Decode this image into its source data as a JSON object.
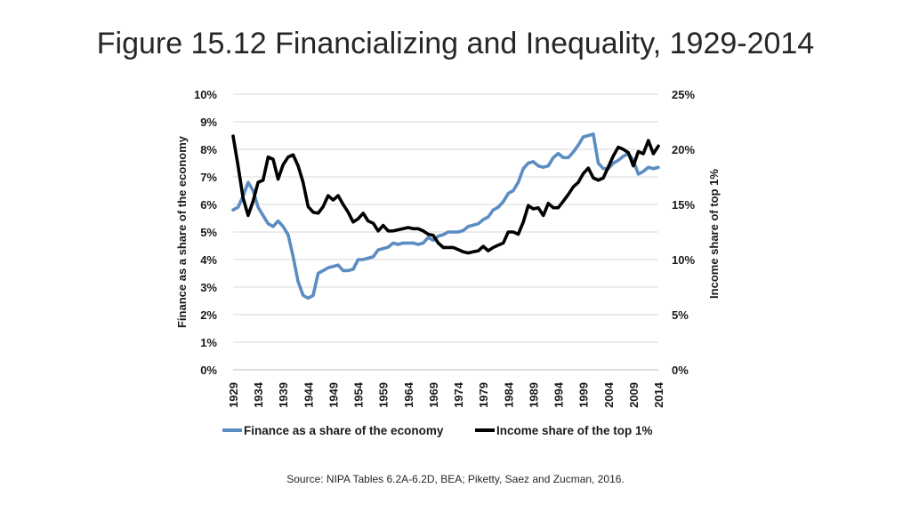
{
  "slide": {
    "title": "Figure 15.12 Financializing and Inequality, 1929-2014",
    "source": "Source: NIPA Tables 6.2A-6.2D, BEA; Piketty, Saez and Zucman, 2016."
  },
  "chart_data": {
    "type": "line",
    "title": "Figure 15.12 Financializing and Inequality, 1929-2014",
    "xlabel": "",
    "ylabel_left": "Finance as a share of the economy",
    "ylabel_right": "Income share of top 1%",
    "xlim": [
      1929,
      2014
    ],
    "ylim_left": [
      0,
      10
    ],
    "ylim_right": [
      0,
      25
    ],
    "grid": true,
    "legend_position": "bottom",
    "x_tick_labels": [
      "1929",
      "1934",
      "1939",
      "1944",
      "1949",
      "1954",
      "1959",
      "1964",
      "1969",
      "1974",
      "1979",
      "1984",
      "1989",
      "1994",
      "1999",
      "2004",
      "2009",
      "2014"
    ],
    "y_left_tick_labels": [
      "0%",
      "1%",
      "2%",
      "3%",
      "4%",
      "5%",
      "6%",
      "7%",
      "8%",
      "9%",
      "10%"
    ],
    "y_right_tick_labels": [
      "0%",
      "5%",
      "10%",
      "15%",
      "20%",
      "25%"
    ],
    "series": [
      {
        "name": "Finance as a share of the economy",
        "axis": "left",
        "color": "#5b8cc2",
        "x": [
          1929,
          1930,
          1931,
          1932,
          1933,
          1934,
          1935,
          1936,
          1937,
          1938,
          1939,
          1940,
          1941,
          1942,
          1943,
          1944,
          1945,
          1946,
          1947,
          1948,
          1949,
          1950,
          1951,
          1952,
          1953,
          1954,
          1955,
          1956,
          1957,
          1958,
          1959,
          1960,
          1961,
          1962,
          1963,
          1964,
          1965,
          1966,
          1967,
          1968,
          1969,
          1970,
          1971,
          1972,
          1973,
          1974,
          1975,
          1976,
          1977,
          1978,
          1979,
          1980,
          1981,
          1982,
          1983,
          1984,
          1985,
          1986,
          1987,
          1988,
          1989,
          1990,
          1991,
          1992,
          1993,
          1994,
          1995,
          1996,
          1997,
          1998,
          1999,
          2000,
          2001,
          2002,
          2003,
          2004,
          2005,
          2006,
          2007,
          2008,
          2009,
          2010,
          2011,
          2012,
          2013,
          2014
        ],
        "values": [
          5.8,
          5.9,
          6.3,
          6.8,
          6.5,
          5.9,
          5.6,
          5.3,
          5.2,
          5.4,
          5.2,
          4.9,
          4.1,
          3.2,
          2.7,
          2.6,
          2.7,
          3.5,
          3.6,
          3.7,
          3.75,
          3.8,
          3.6,
          3.6,
          3.65,
          4.0,
          4.0,
          4.05,
          4.1,
          4.35,
          4.4,
          4.45,
          4.6,
          4.55,
          4.6,
          4.6,
          4.6,
          4.55,
          4.6,
          4.8,
          4.7,
          4.85,
          4.9,
          5.0,
          5.0,
          5.0,
          5.05,
          5.2,
          5.25,
          5.3,
          5.45,
          5.55,
          5.8,
          5.9,
          6.1,
          6.4,
          6.5,
          6.8,
          7.3,
          7.5,
          7.55,
          7.4,
          7.35,
          7.4,
          7.7,
          7.85,
          7.7,
          7.7,
          7.9,
          8.15,
          8.45,
          8.5,
          8.55,
          7.5,
          7.3,
          7.3,
          7.5,
          7.6,
          7.75,
          7.85,
          7.6,
          7.1,
          7.2,
          7.35,
          7.3,
          7.35
        ]
      },
      {
        "name": "Income share of the top 1%",
        "axis": "right",
        "color": "#000000",
        "x": [
          1929,
          1930,
          1931,
          1932,
          1933,
          1934,
          1935,
          1936,
          1937,
          1938,
          1939,
          1940,
          1941,
          1942,
          1943,
          1944,
          1945,
          1946,
          1947,
          1948,
          1949,
          1950,
          1951,
          1952,
          1953,
          1954,
          1955,
          1956,
          1957,
          1958,
          1959,
          1960,
          1961,
          1962,
          1963,
          1964,
          1965,
          1966,
          1967,
          1968,
          1969,
          1970,
          1971,
          1972,
          1973,
          1974,
          1975,
          1976,
          1977,
          1978,
          1979,
          1980,
          1981,
          1982,
          1983,
          1984,
          1985,
          1986,
          1987,
          1988,
          1989,
          1990,
          1991,
          1992,
          1993,
          1994,
          1995,
          1996,
          1997,
          1998,
          1999,
          2000,
          2001,
          2002,
          2003,
          2004,
          2005,
          2006,
          2007,
          2008,
          2009,
          2010,
          2011,
          2012,
          2013,
          2014
        ],
        "values": [
          21.2,
          18.5,
          15.6,
          14.0,
          15.3,
          17.0,
          17.2,
          19.3,
          19.1,
          17.3,
          18.6,
          19.3,
          19.5,
          18.5,
          17.0,
          14.8,
          14.3,
          14.2,
          14.8,
          15.8,
          15.4,
          15.8,
          15.0,
          14.3,
          13.4,
          13.7,
          14.2,
          13.5,
          13.3,
          12.6,
          13.1,
          12.6,
          12.6,
          12.7,
          12.8,
          12.9,
          12.8,
          12.8,
          12.6,
          12.3,
          12.2,
          11.5,
          11.1,
          11.1,
          11.1,
          10.9,
          10.7,
          10.6,
          10.7,
          10.8,
          11.2,
          10.8,
          11.1,
          11.3,
          11.5,
          12.5,
          12.5,
          12.3,
          13.4,
          14.9,
          14.6,
          14.7,
          14.0,
          15.1,
          14.7,
          14.7,
          15.3,
          15.9,
          16.6,
          17.0,
          17.8,
          18.3,
          17.4,
          17.2,
          17.4,
          18.4,
          19.4,
          20.2,
          20.0,
          19.7,
          18.5,
          19.8,
          19.6,
          20.8,
          19.6,
          20.3
        ]
      }
    ]
  }
}
